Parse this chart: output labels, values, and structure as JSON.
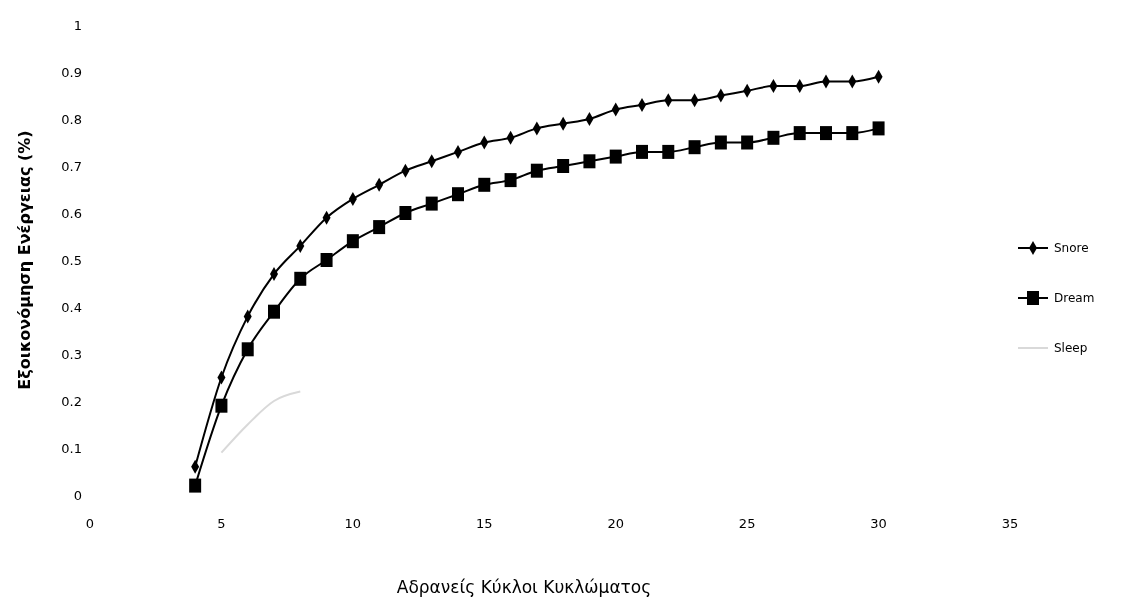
{
  "chart_data": {
    "type": "line",
    "xlabel": "Αδρανείς Κύκλοι Κυκλώματος",
    "ylabel": "Εξοικονόμηση Ενέργειας (%)",
    "x": [
      4,
      5,
      6,
      7,
      8,
      9,
      10,
      11,
      12,
      13,
      14,
      15,
      16,
      17,
      18,
      19,
      20,
      21,
      22,
      23,
      24,
      25,
      26,
      27,
      28,
      29,
      30
    ],
    "series": [
      {
        "name": "Snore",
        "color": "#000000",
        "marker": "diamond",
        "values": [
          0.06,
          0.25,
          0.38,
          0.47,
          0.53,
          0.59,
          0.63,
          0.66,
          0.69,
          0.71,
          0.73,
          0.75,
          0.76,
          0.78,
          0.79,
          0.8,
          0.82,
          0.83,
          0.84,
          0.84,
          0.85,
          0.86,
          0.87,
          0.87,
          0.88,
          0.88,
          0.89
        ]
      },
      {
        "name": "Dream",
        "color": "#000000",
        "marker": "square",
        "values": [
          0.02,
          0.19,
          0.31,
          0.39,
          0.46,
          0.5,
          0.54,
          0.57,
          0.6,
          0.62,
          0.64,
          0.66,
          0.67,
          0.69,
          0.7,
          0.71,
          0.72,
          0.73,
          0.73,
          0.74,
          0.75,
          0.75,
          0.76,
          0.77,
          0.77,
          0.77,
          0.78
        ]
      },
      {
        "name": "Sleep",
        "color": "#d9d9d9",
        "marker": "none",
        "x": [
          5,
          6,
          7,
          8
        ],
        "values": [
          0.09,
          0.15,
          0.2,
          0.22
        ]
      }
    ],
    "xlim": [
      0,
      35
    ],
    "xticks": [
      0,
      5,
      10,
      15,
      20,
      25,
      30,
      35
    ],
    "ylim": [
      0,
      1
    ],
    "yticks": [
      0,
      0.1,
      0.2,
      0.3,
      0.4,
      0.5,
      0.6,
      0.7,
      0.8,
      0.9,
      1
    ],
    "grid": false,
    "legend": "right"
  }
}
